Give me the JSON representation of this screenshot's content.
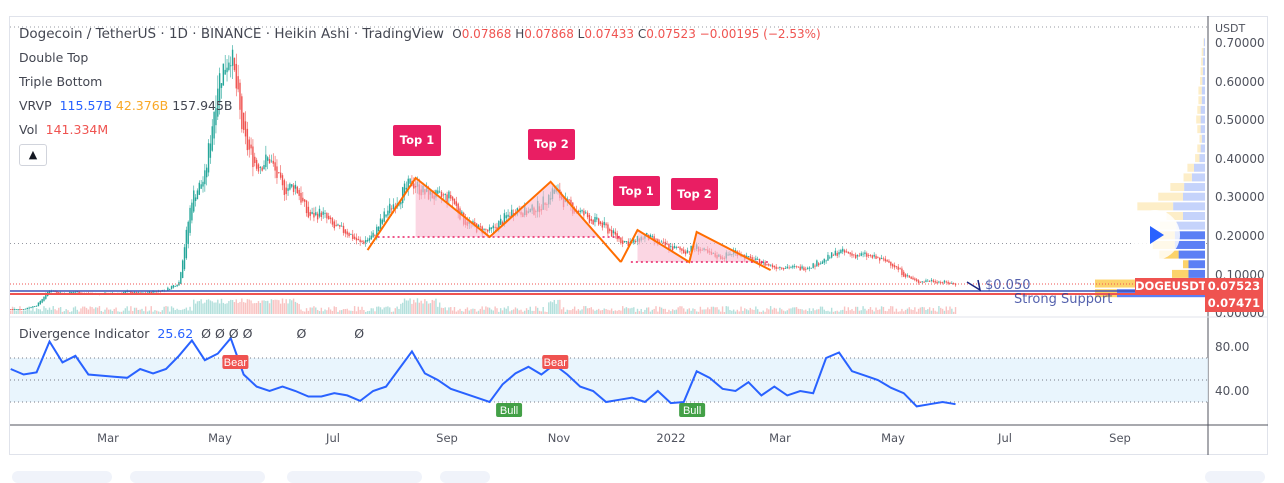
{
  "header": {
    "symbol": "Dogecoin / TetherUS",
    "interval": "1D",
    "exchange": "BINANCE",
    "chart_style": "Heikin Ashi",
    "source": "TradingView",
    "sep": " · ",
    "ohlc": {
      "o_label": "O",
      "o": "0.07868",
      "h_label": "H",
      "h": "0.07868",
      "l_label": "L",
      "l": "0.07433",
      "c_label": "C",
      "c": "0.07523",
      "change": "−0.00195 (−2.53%)"
    }
  },
  "indicators": {
    "double_top": "Double Top",
    "triple_bottom": "Triple Bottom",
    "vrvp": {
      "label": "VRVP",
      "up": "115.57B",
      "down": "42.376B",
      "total": "157.945B"
    },
    "vol": {
      "label": "Vol",
      "value": "141.334M"
    },
    "collapse_icon": "chevron-up-icon",
    "divergence": {
      "label": "Divergence Indicator",
      "value": "25.62",
      "markers": [
        "Ø",
        "Ø",
        "Ø",
        "Ø",
        "Ø",
        "Ø"
      ]
    }
  },
  "price_axis": {
    "unit": "USDT",
    "ticks": [
      "0.70000",
      "0.60000",
      "0.50000",
      "0.40000",
      "0.30000",
      "0.20000",
      "0.10000",
      "0.00000"
    ]
  },
  "price_tags": {
    "symbol": "DOGEUSDT",
    "last": "0.07523",
    "line": "0.07471"
  },
  "indicator_axis": {
    "ticks": [
      "80.00",
      "40.00"
    ]
  },
  "time_axis": {
    "ticks": [
      "Mar",
      "May",
      "Jul",
      "Sep",
      "Nov",
      "2022",
      "Mar",
      "May",
      "Jul",
      "Sep"
    ]
  },
  "annotations": {
    "support_price": "$0.050",
    "support_label": "Strong Support",
    "tops": [
      "Top 1",
      "Top 2",
      "Top 1",
      "Top 2"
    ],
    "bull": "Bull",
    "bear": "Bear"
  },
  "colors": {
    "up": "#26a69a",
    "down": "#ef5350",
    "pattern": "#ff6d00",
    "pattern_fill": "#f8bbd0",
    "tag": "#e91e63",
    "indicator": "#2962ff",
    "support_line": "#ef5350",
    "support_line2": "#3f51b5",
    "vrvp_up": "#5b7ff5",
    "vrvp_down": "#fcd36b"
  },
  "play_icon": "play-icon",
  "chart_data": [
    {
      "type": "candlestick",
      "style": "heikin-ashi",
      "series_start": "2021-01-09",
      "step": "weekly",
      "ylim": [
        0,
        0.72
      ],
      "close": [
        0.01,
        0.01,
        0.02,
        0.06,
        0.05,
        0.055,
        0.05,
        0.05,
        0.05,
        0.055,
        0.05,
        0.055,
        0.06,
        0.08,
        0.3,
        0.35,
        0.6,
        0.68,
        0.45,
        0.38,
        0.4,
        0.32,
        0.33,
        0.25,
        0.26,
        0.22,
        0.21,
        0.18,
        0.2,
        0.26,
        0.3,
        0.34,
        0.31,
        0.3,
        0.3,
        0.24,
        0.22,
        0.21,
        0.24,
        0.27,
        0.26,
        0.28,
        0.32,
        0.28,
        0.26,
        0.24,
        0.22,
        0.19,
        0.18,
        0.2,
        0.18,
        0.17,
        0.16,
        0.17,
        0.15,
        0.145,
        0.16,
        0.14,
        0.13,
        0.12,
        0.12,
        0.115,
        0.125,
        0.14,
        0.16,
        0.15,
        0.15,
        0.14,
        0.13,
        0.1,
        0.08,
        0.085,
        0.08,
        0.075
      ],
      "horizontal_lines": [
        0.07523,
        0.07471,
        0.18
      ],
      "patterns": [
        {
          "name": "Double Top",
          "points": [
            [
              "2021-07-21",
              0.163
            ],
            [
              "2021-08-16",
              0.35
            ],
            [
              "2021-09-25",
              0.197
            ],
            [
              "2021-10-28",
              0.34
            ],
            [
              "2021-12-05",
              0.132
            ]
          ],
          "neckline": 0.197
        },
        {
          "name": "Double Top",
          "points": [
            [
              "2021-12-05",
              0.132
            ],
            [
              "2021-12-14",
              0.215
            ],
            [
              "2022-01-11",
              0.132
            ],
            [
              "2022-01-15",
              0.21
            ],
            [
              "2022-02-24",
              0.111
            ]
          ],
          "neckline": 0.132
        }
      ],
      "volume_profile": {
        "price_levels": [
          0.05,
          0.075,
          0.1,
          0.125,
          0.15,
          0.175,
          0.2,
          0.225,
          0.25,
          0.275,
          0.3,
          0.325,
          0.35,
          0.375,
          0.4,
          0.425,
          0.45,
          0.475,
          0.5,
          0.525,
          0.55,
          0.575,
          0.6,
          0.625,
          0.65,
          0.675,
          0.7
        ],
        "up": [
          160,
          105,
          30,
          30,
          48,
          55,
          55,
          52,
          40,
          58,
          40,
          38,
          24,
          20,
          10,
          8,
          6,
          8,
          8,
          8,
          6,
          6,
          5,
          4,
          4,
          3,
          2
        ],
        "down": [
          40,
          95,
          30,
          10,
          35,
          40,
          35,
          30,
          30,
          65,
          45,
          25,
          15,
          12,
          8,
          6,
          4,
          6,
          8,
          6,
          6,
          6,
          4,
          4,
          3,
          3,
          1
        ]
      }
    },
    {
      "type": "line",
      "name": "Divergence Indicator",
      "series_start": "2021-01-09",
      "step": "weekly",
      "ylim": [
        20,
        95
      ],
      "bands": [
        30,
        50,
        70
      ],
      "values": [
        60,
        55,
        57,
        85,
        66,
        72,
        55,
        54,
        53,
        52,
        60,
        56,
        60,
        72,
        86,
        68,
        74,
        88,
        55,
        44,
        40,
        44,
        40,
        35,
        35,
        38,
        36,
        31,
        40,
        44,
        60,
        76,
        56,
        50,
        42,
        38,
        34,
        30,
        46,
        56,
        62,
        55,
        64,
        55,
        44,
        40,
        30,
        32,
        34,
        30,
        40,
        29,
        30,
        58,
        52,
        42,
        40,
        48,
        36,
        44,
        36,
        40,
        38,
        70,
        75,
        58,
        54,
        50,
        43,
        38,
        26,
        28,
        30,
        28
      ],
      "signals": [
        [
          "2021-05-10",
          "Bear"
        ],
        [
          "2021-10-05",
          "Bull"
        ],
        [
          "2021-10-30",
          "Bear"
        ],
        [
          "2022-01-12",
          "Bull"
        ]
      ]
    }
  ]
}
